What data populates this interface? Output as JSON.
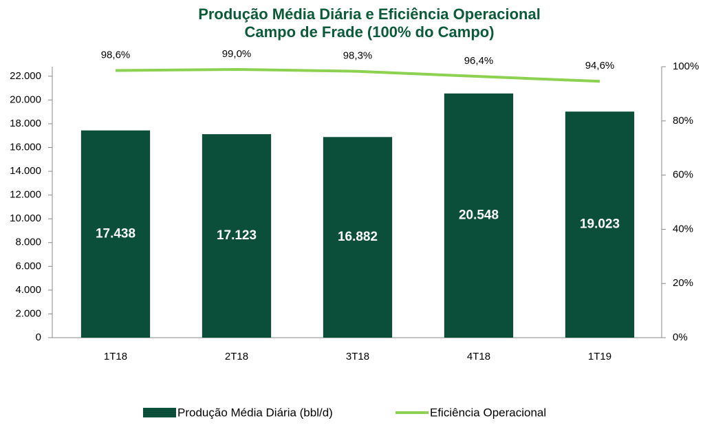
{
  "chart_data": {
    "type": "bar",
    "title": "Produção Média Diária e Eficiência Operacional",
    "subtitle": "Campo de Frade (100% do Campo)",
    "categories": [
      "1T18",
      "2T18",
      "3T18",
      "4T18",
      "1T19"
    ],
    "series": [
      {
        "name": "Produção Média Diária (bbl/d)",
        "type": "bar",
        "color": "#0b4f3a",
        "values": [
          17438,
          17123,
          16882,
          20548,
          19023
        ],
        "value_labels": [
          "17.438",
          "17.123",
          "16.882",
          "20.548",
          "19.023"
        ]
      },
      {
        "name": "Eficiência Operacional",
        "type": "line",
        "axis": "y2",
        "color": "#8cd14f",
        "values": [
          98.6,
          99.0,
          98.3,
          96.4,
          94.6
        ],
        "value_labels": [
          "98,6%",
          "99,0%",
          "98,3%",
          "96,4%",
          "94,6%"
        ]
      }
    ],
    "ylim": [
      0,
      22800
    ],
    "yticks": [
      0,
      {
        "value": 2000,
        "label": "2.000"
      },
      {
        "value": 4000,
        "label": "4.000"
      },
      {
        "value": 6000,
        "label": "6.000"
      },
      {
        "value": 8000,
        "label": "8.000"
      },
      {
        "value": 10000,
        "label": "10.000"
      },
      {
        "value": 12000,
        "label": "12.000"
      },
      {
        "value": 14000,
        "label": "14.000"
      },
      {
        "value": 16000,
        "label": "16.000"
      },
      {
        "value": 18000,
        "label": "18.000"
      },
      {
        "value": 20000,
        "label": "20.000"
      },
      {
        "value": 22000,
        "label": "22.000"
      }
    ],
    "y2lim": [
      0,
      100
    ],
    "y2ticks": [
      {
        "value": 0,
        "label": "0%"
      },
      {
        "value": 20,
        "label": "20%"
      },
      {
        "value": 40,
        "label": "40%"
      },
      {
        "value": 60,
        "label": "60%"
      },
      {
        "value": 80,
        "label": "80%"
      },
      {
        "value": 100,
        "label": "100%"
      }
    ],
    "legend": "bottom"
  }
}
